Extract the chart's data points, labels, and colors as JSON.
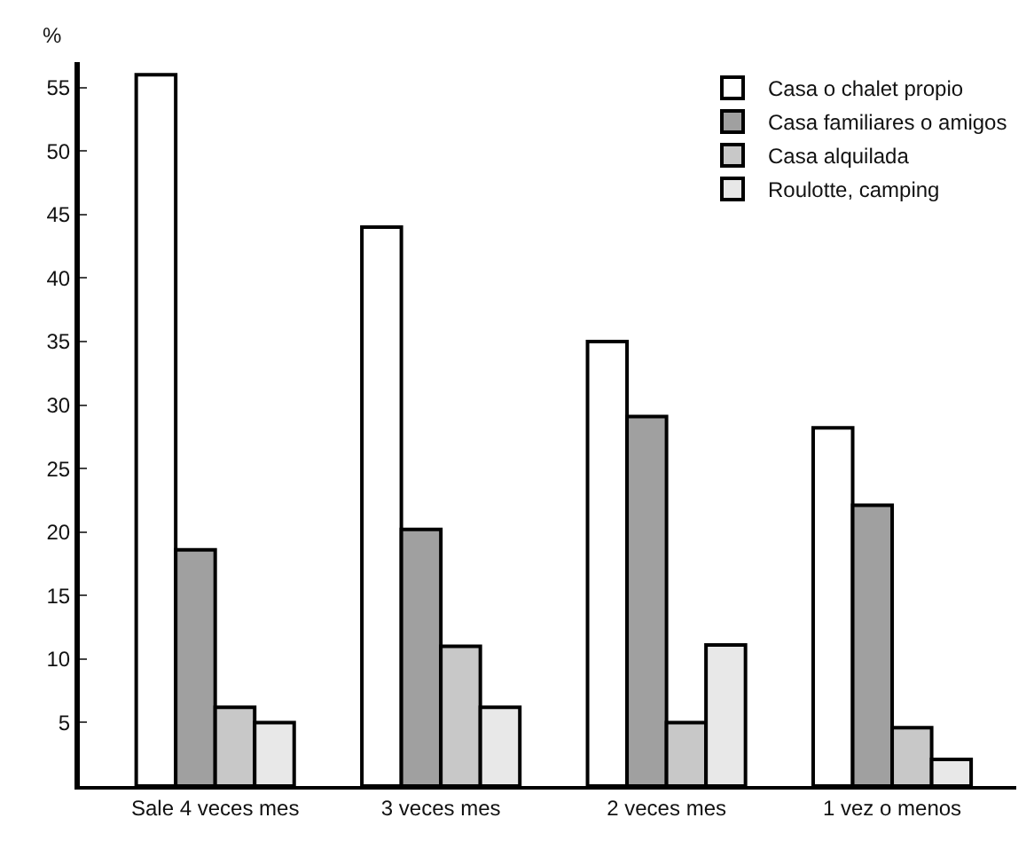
{
  "chart_data": {
    "type": "bar",
    "ylabel": "%",
    "categories": [
      "Sale 4 veces mes",
      "3 veces mes",
      "2 veces mes",
      "1 vez o menos"
    ],
    "series": [
      {
        "name": "Casa o chalet propio",
        "color": "#ffffff",
        "values": [
          56,
          44,
          35,
          28.2
        ]
      },
      {
        "name": "Casa familiares o amigos",
        "color": "#a0a0a0",
        "values": [
          18.6,
          20.2,
          29.1,
          22.1
        ]
      },
      {
        "name": "Casa alquilada",
        "color": "#c8c8c8",
        "values": [
          6.2,
          11,
          5,
          4.6
        ]
      },
      {
        "name": "Roulotte, camping",
        "color": "#e8e8e8",
        "values": [
          5,
          6.2,
          11.1,
          2.1
        ]
      }
    ],
    "ylim": [
      0,
      57
    ],
    "yticks": [
      5,
      10,
      15,
      20,
      25,
      30,
      35,
      40,
      45,
      50,
      55
    ],
    "grid": false,
    "legend": "top right"
  }
}
